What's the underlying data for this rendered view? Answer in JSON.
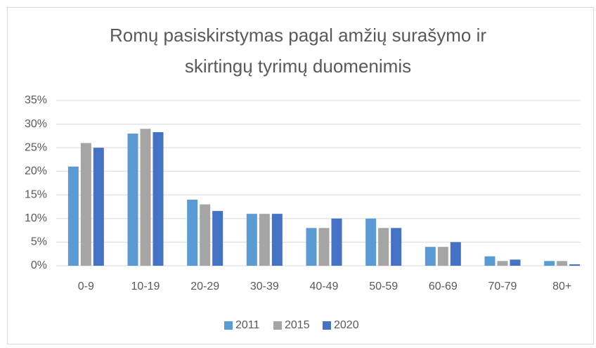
{
  "chart_data": {
    "type": "bar",
    "title": "Romų pasiskirstymas pagal amžių surašymo ir skirtingų tyrimų duomenimis",
    "categories": [
      "0-9",
      "10-19",
      "20-29",
      "30-39",
      "40-49",
      "50-59",
      "60-69",
      "70-79",
      "80+"
    ],
    "series": [
      {
        "name": "2011",
        "color": "#5b9bd5",
        "values": [
          21,
          28,
          14,
          11,
          8,
          10,
          4,
          2,
          1
        ]
      },
      {
        "name": "2015",
        "color": "#a5a5a5",
        "values": [
          26,
          29,
          13,
          11,
          8,
          8,
          4,
          1,
          1
        ]
      },
      {
        "name": "2020",
        "color": "#4472c4",
        "values": [
          25,
          28.3,
          11.6,
          11,
          10,
          8,
          5,
          1.3,
          0.3
        ]
      }
    ],
    "ylim": [
      0,
      35
    ],
    "yticks": [
      {
        "value": 0,
        "label": "0%"
      },
      {
        "value": 5,
        "label": "5%"
      },
      {
        "value": 10,
        "label": "10%"
      },
      {
        "value": 15,
        "label": "15%"
      },
      {
        "value": 20,
        "label": "20%"
      },
      {
        "value": 25,
        "label": "25%"
      },
      {
        "value": 30,
        "label": "30%"
      },
      {
        "value": 35,
        "label": "35%"
      }
    ],
    "grid": true,
    "legend": "bottom"
  }
}
